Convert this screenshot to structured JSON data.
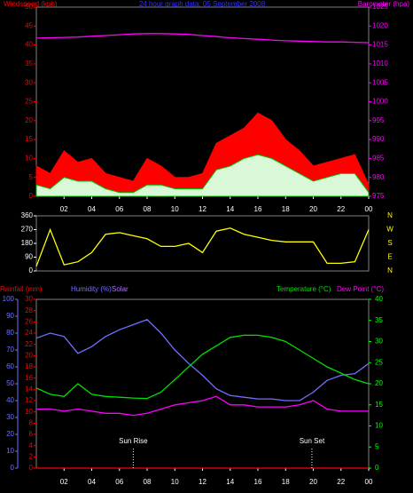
{
  "chart_data": [
    {
      "type": "line",
      "title": "24 hour graph data: 05 September 2008",
      "title_color": "#3030ff",
      "y_label": "Windspeed (kph)",
      "y2_label": "Barometer (hpa)",
      "x": [
        0,
        1,
        2,
        3,
        4,
        5,
        6,
        7,
        8,
        9,
        10,
        11,
        12,
        13,
        14,
        15,
        16,
        17,
        18,
        19,
        20,
        21,
        22,
        23,
        24
      ],
      "xlim": [
        0,
        24
      ],
      "xticks": [
        {
          "value": 2,
          "label": "02"
        },
        {
          "value": 4,
          "label": "04"
        },
        {
          "value": 6,
          "label": "06"
        },
        {
          "value": 8,
          "label": "08"
        },
        10,
        12,
        14,
        16,
        18,
        20,
        22,
        {
          "value": 24,
          "label": "00"
        }
      ],
      "ylim": [
        0,
        50
      ],
      "yticks": [
        0,
        5,
        10,
        15,
        20,
        25,
        30,
        35,
        40,
        45,
        50
      ],
      "ycolor": "#ff0000",
      "y2lim": [
        975,
        1025
      ],
      "y2ticks": [
        975,
        980,
        985,
        990,
        995,
        1000,
        1005,
        1010,
        1015,
        1020,
        1025
      ],
      "y2color": "#ff00ff",
      "series": [
        {
          "style": "area",
          "color": "#ff0000",
          "values": [
            8,
            6,
            12,
            9,
            10,
            6,
            5,
            4,
            10,
            8,
            5,
            5,
            6,
            14,
            16,
            18,
            22,
            20,
            15,
            12,
            8,
            9,
            10,
            11,
            3
          ]
        },
        {
          "style": "area",
          "color": "#00c000",
          "fill": "#d8f8d8",
          "values": [
            3,
            2,
            5,
            4,
            4,
            2,
            1,
            1,
            3,
            3,
            2,
            2,
            2,
            7,
            8,
            10,
            11,
            10,
            8,
            6,
            4,
            5,
            6,
            6,
            1
          ]
        },
        {
          "style": "line",
          "axis": "y2",
          "color": "#ff00ff",
          "values": [
            1016.8,
            1016.9,
            1017,
            1017.1,
            1017.3,
            1017.5,
            1017.7,
            1017.9,
            1018,
            1018,
            1017.9,
            1017.8,
            1017.5,
            1017.2,
            1016.9,
            1016.7,
            1016.5,
            1016.3,
            1016.1,
            1016,
            1015.9,
            1015.8,
            1015.8,
            1015.7,
            1015.6
          ]
        }
      ]
    },
    {
      "type": "line",
      "x": [
        0,
        1,
        2,
        3,
        4,
        5,
        6,
        7,
        8,
        9,
        10,
        11,
        12,
        13,
        14,
        15,
        16,
        17,
        18,
        19,
        20,
        21,
        22,
        23,
        24
      ],
      "xlim": [
        0,
        24
      ],
      "ylim": [
        0,
        360
      ],
      "yticks": [
        0,
        90,
        180,
        270,
        360
      ],
      "ycolor": "#ffffff",
      "y2lim": [
        0,
        360
      ],
      "y2ticks": [
        {
          "value": 360,
          "label": "N"
        },
        {
          "value": 270,
          "label": "W"
        },
        {
          "value": 180,
          "label": "S"
        },
        {
          "value": 90,
          "label": "E"
        },
        {
          "value": 0,
          "label": "N"
        }
      ],
      "y2color": "#ffff00",
      "series": [
        {
          "style": "line",
          "color": "#ffff00",
          "values": [
            30,
            270,
            40,
            60,
            120,
            240,
            250,
            230,
            210,
            160,
            160,
            180,
            120,
            260,
            280,
            240,
            220,
            200,
            190,
            190,
            190,
            50,
            50,
            60,
            270
          ]
        }
      ]
    },
    {
      "type": "line",
      "solar_label": "Solar",
      "solar_color": "#b070ff",
      "x": [
        0,
        1,
        2,
        3,
        4,
        5,
        6,
        7,
        8,
        9,
        10,
        11,
        12,
        13,
        14,
        15,
        16,
        17,
        18,
        19,
        20,
        21,
        22,
        23,
        24
      ],
      "xlim": [
        0,
        24
      ],
      "xticks": [
        {
          "value": 2,
          "label": "02"
        },
        {
          "value": 4,
          "label": "04"
        },
        {
          "value": 6,
          "label": "06"
        },
        {
          "value": 8,
          "label": "08"
        },
        10,
        12,
        14,
        16,
        18,
        20,
        22,
        {
          "value": 24,
          "label": "00"
        }
      ],
      "ylim": [
        0,
        100
      ],
      "yticks": [
        0,
        10,
        20,
        30,
        40,
        50,
        60,
        70,
        80,
        90,
        100
      ],
      "ycolor": "#7070ff",
      "y3lim": [
        0,
        30
      ],
      "y3ticks": [
        0,
        2,
        4,
        6,
        8,
        10,
        12,
        14,
        16,
        18,
        20,
        22,
        24,
        26,
        28,
        30
      ],
      "y3color": "#ff0000",
      "y2lim": [
        0,
        40
      ],
      "y2ticks": [
        0,
        5,
        10,
        15,
        20,
        25,
        30,
        35,
        40
      ],
      "y2color": "#00ff00",
      "annotations": [
        {
          "text": "Sun Rise",
          "x": 7
        },
        {
          "text": "Sun Set",
          "x": 19.9
        }
      ],
      "series": [
        {
          "name": "Rainfall (mm)",
          "axis": "y3",
          "style": "line",
          "color": "#ff0000",
          "values": [
            0,
            0,
            0,
            0,
            0,
            0,
            0,
            0,
            0,
            0,
            0,
            0,
            0,
            0,
            0,
            0,
            0,
            0,
            0,
            0,
            0,
            0,
            0,
            0,
            0
          ]
        },
        {
          "name": "Humidity (%)",
          "style": "line",
          "color": "#7070ff",
          "values": [
            77,
            80,
            78,
            68,
            72,
            78,
            82,
            85,
            88,
            80,
            70,
            62,
            55,
            47,
            43,
            42,
            41,
            41,
            40,
            40,
            45,
            52,
            55,
            56,
            62
          ]
        },
        {
          "name": "Temperature (°C)",
          "axis": "y2",
          "style": "line",
          "color": "#00e000",
          "values": [
            19,
            17.5,
            17,
            20,
            17.5,
            17,
            16.8,
            16.6,
            16.5,
            18,
            21,
            24,
            27,
            29,
            31,
            31.5,
            31.5,
            31,
            30,
            28,
            26,
            24,
            22.5,
            21,
            20
          ]
        },
        {
          "name": "Dew Point (°C)",
          "axis": "y2",
          "style": "line",
          "color": "#ff00ff",
          "values": [
            14,
            14,
            13.5,
            14,
            13.5,
            13,
            13,
            12.5,
            13,
            14,
            15,
            15.5,
            16,
            17,
            15,
            15,
            14.5,
            14.5,
            14.5,
            15,
            16,
            14,
            13.5,
            13.5,
            13.5
          ]
        }
      ]
    }
  ]
}
